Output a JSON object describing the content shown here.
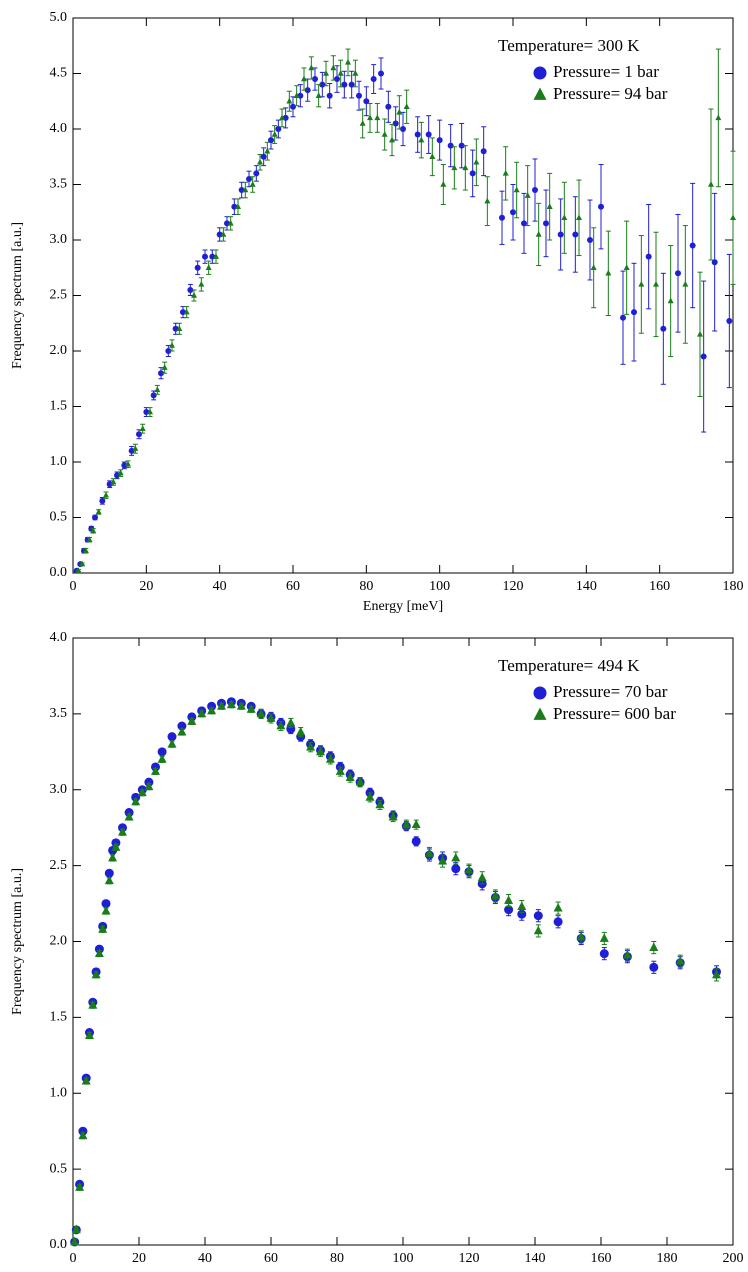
{
  "chart_data": [
    {
      "type": "scatter",
      "xlabel": "Energy [meV]",
      "ylabel": "Frequency spectrum [a.u.]",
      "legend_title": "Temperature= 300 K",
      "legend": "upper right",
      "xlim": [
        0,
        180
      ],
      "ylim": [
        0,
        5
      ],
      "xticks": [
        0,
        20,
        40,
        60,
        80,
        100,
        120,
        140,
        160,
        180
      ],
      "yticks": [
        {
          "value": 0,
          "label": "0.0"
        },
        0.5,
        {
          "value": 1,
          "label": "1.0"
        },
        1.5,
        {
          "value": 2,
          "label": "2.0"
        },
        2.5,
        {
          "value": 3,
          "label": "3.0"
        },
        3.5,
        {
          "value": 4,
          "label": "4.0"
        },
        4.5,
        {
          "value": 5,
          "label": "5.0"
        }
      ],
      "series": [
        {
          "name": "Pressure= 1 bar",
          "color": "#1f1fd6",
          "marker": "circle",
          "x": [
            1,
            2,
            3,
            4,
            5,
            6,
            8,
            10,
            12,
            14,
            16,
            18,
            20,
            22,
            24,
            26,
            28,
            30,
            32,
            34,
            36,
            38,
            40,
            42,
            44,
            46,
            48,
            50,
            52,
            54,
            56,
            58,
            60,
            62,
            64,
            66,
            68,
            70,
            72,
            74,
            76,
            78,
            80,
            82,
            84,
            86,
            88,
            90,
            94,
            97,
            100,
            103,
            106,
            109,
            112,
            117,
            120,
            123,
            126,
            129,
            133,
            137,
            141,
            144,
            150,
            153,
            157,
            161,
            165,
            169,
            172,
            175,
            179
          ],
          "values": [
            0.02,
            0.08,
            0.2,
            0.3,
            0.4,
            0.5,
            0.65,
            0.8,
            0.88,
            0.97,
            1.1,
            1.25,
            1.45,
            1.6,
            1.8,
            2.0,
            2.2,
            2.35,
            2.55,
            2.75,
            2.85,
            2.85,
            3.05,
            3.15,
            3.3,
            3.45,
            3.55,
            3.6,
            3.75,
            3.9,
            4.0,
            4.1,
            4.2,
            4.3,
            4.35,
            4.45,
            4.4,
            4.3,
            4.45,
            4.4,
            4.4,
            4.3,
            4.25,
            4.45,
            4.5,
            4.2,
            4.05,
            4.0,
            3.95,
            3.95,
            3.9,
            3.85,
            3.85,
            3.6,
            3.8,
            3.2,
            3.25,
            3.15,
            3.45,
            3.15,
            3.05,
            3.05,
            3.0,
            3.3,
            2.3,
            2.35,
            2.85,
            2.2,
            2.7,
            2.95,
            1.95,
            2.8,
            2.27
          ],
          "errors": [
            0.01,
            0.01,
            0.02,
            0.02,
            0.02,
            0.02,
            0.03,
            0.03,
            0.03,
            0.03,
            0.04,
            0.04,
            0.04,
            0.04,
            0.05,
            0.05,
            0.05,
            0.05,
            0.05,
            0.06,
            0.06,
            0.06,
            0.06,
            0.06,
            0.07,
            0.07,
            0.07,
            0.07,
            0.08,
            0.08,
            0.08,
            0.09,
            0.09,
            0.1,
            0.1,
            0.1,
            0.11,
            0.11,
            0.12,
            0.12,
            0.12,
            0.13,
            0.13,
            0.13,
            0.14,
            0.14,
            0.15,
            0.15,
            0.16,
            0.17,
            0.18,
            0.19,
            0.2,
            0.21,
            0.22,
            0.24,
            0.25,
            0.27,
            0.28,
            0.3,
            0.32,
            0.34,
            0.36,
            0.38,
            0.42,
            0.44,
            0.47,
            0.5,
            0.53,
            0.56,
            0.68,
            0.62,
            0.6
          ]
        },
        {
          "name": "Pressure= 94 bar",
          "color": "#1a7d1a",
          "marker": "triangle",
          "x": [
            1.5,
            2.5,
            3.5,
            4.5,
            5.5,
            7,
            9,
            11,
            13,
            15,
            17,
            19,
            21,
            23,
            25,
            27,
            29,
            31,
            33,
            35,
            37,
            39,
            41,
            43,
            45,
            47,
            49,
            51,
            53,
            55,
            57,
            59,
            61,
            63,
            65,
            67,
            69,
            71,
            73,
            75,
            77,
            79,
            81,
            83,
            85,
            87,
            89,
            91,
            95,
            98,
            101,
            104,
            107,
            110,
            113,
            118,
            121,
            124,
            127,
            130,
            134,
            138,
            142,
            146,
            151,
            155,
            159,
            163,
            167,
            171,
            174,
            176,
            180
          ],
          "values": [
            0.02,
            0.08,
            0.2,
            0.3,
            0.38,
            0.55,
            0.7,
            0.82,
            0.9,
            0.98,
            1.12,
            1.3,
            1.45,
            1.65,
            1.85,
            2.05,
            2.2,
            2.35,
            2.5,
            2.6,
            2.75,
            2.85,
            3.05,
            3.15,
            3.3,
            3.45,
            3.5,
            3.7,
            3.8,
            3.95,
            4.1,
            4.25,
            4.3,
            4.45,
            4.55,
            4.3,
            4.5,
            4.55,
            4.5,
            4.6,
            4.5,
            4.05,
            4.1,
            4.1,
            3.95,
            3.9,
            4.15,
            4.2,
            3.9,
            3.75,
            3.5,
            3.65,
            3.65,
            3.7,
            3.35,
            3.6,
            3.45,
            3.4,
            3.05,
            3.3,
            3.2,
            3.2,
            2.75,
            2.7,
            2.75,
            2.6,
            2.6,
            2.45,
            2.6,
            2.15,
            3.5,
            4.1,
            3.2
          ],
          "errors": [
            0.01,
            0.01,
            0.02,
            0.02,
            0.02,
            0.02,
            0.03,
            0.03,
            0.03,
            0.03,
            0.04,
            0.04,
            0.04,
            0.04,
            0.05,
            0.05,
            0.05,
            0.05,
            0.05,
            0.06,
            0.06,
            0.06,
            0.06,
            0.06,
            0.07,
            0.07,
            0.07,
            0.07,
            0.08,
            0.08,
            0.08,
            0.09,
            0.09,
            0.1,
            0.1,
            0.1,
            0.11,
            0.11,
            0.12,
            0.12,
            0.12,
            0.13,
            0.13,
            0.13,
            0.14,
            0.14,
            0.15,
            0.15,
            0.16,
            0.17,
            0.18,
            0.19,
            0.2,
            0.21,
            0.22,
            0.24,
            0.25,
            0.27,
            0.28,
            0.3,
            0.32,
            0.34,
            0.36,
            0.38,
            0.42,
            0.44,
            0.47,
            0.5,
            0.53,
            0.56,
            0.68,
            0.62,
            0.6
          ]
        }
      ]
    },
    {
      "type": "scatter",
      "xlabel": "Energy [meV]",
      "ylabel": "Frequency spectrum [a.u.]",
      "legend_title": "Temperature= 494 K",
      "legend": "upper right",
      "xlim": [
        0,
        200
      ],
      "ylim": [
        0,
        4
      ],
      "xticks": [
        0,
        20,
        40,
        60,
        80,
        100,
        120,
        140,
        160,
        180,
        200
      ],
      "yticks": [
        {
          "value": 0,
          "label": "0.0"
        },
        0.5,
        {
          "value": 1,
          "label": "1.0"
        },
        1.5,
        {
          "value": 2,
          "label": "2.0"
        },
        2.5,
        {
          "value": 3,
          "label": "3.0"
        },
        3.5,
        {
          "value": 4,
          "label": "4.0"
        }
      ],
      "series": [
        {
          "name": "Pressure= 70 bar",
          "color": "#1f1fd6",
          "marker": "circle",
          "x": [
            0.5,
            1,
            2,
            3,
            4,
            5,
            6,
            7,
            8,
            9,
            10,
            11,
            12,
            13,
            15,
            17,
            19,
            21,
            23,
            25,
            27,
            30,
            33,
            36,
            39,
            42,
            45,
            48,
            51,
            54,
            57,
            60,
            63,
            66,
            69,
            72,
            75,
            78,
            81,
            84,
            87,
            90,
            93,
            97,
            101,
            104,
            108,
            112,
            116,
            120,
            124,
            128,
            132,
            136,
            141,
            147,
            154,
            161,
            168,
            176,
            184,
            195
          ],
          "values": [
            0.02,
            0.1,
            0.4,
            0.75,
            1.1,
            1.4,
            1.6,
            1.8,
            1.95,
            2.1,
            2.25,
            2.45,
            2.6,
            2.65,
            2.75,
            2.85,
            2.95,
            3.0,
            3.05,
            3.15,
            3.25,
            3.35,
            3.42,
            3.48,
            3.52,
            3.55,
            3.57,
            3.58,
            3.57,
            3.55,
            3.5,
            3.48,
            3.44,
            3.4,
            3.35,
            3.3,
            3.26,
            3.22,
            3.15,
            3.1,
            3.05,
            2.98,
            2.92,
            2.83,
            2.76,
            2.66,
            2.57,
            2.55,
            2.48,
            2.46,
            2.38,
            2.29,
            2.21,
            2.18,
            2.17,
            2.13,
            2.02,
            1.92,
            1.9,
            1.83,
            1.86,
            1.8
          ],
          "errors": [
            0.02,
            0.02,
            0.02,
            0.02,
            0.02,
            0.02,
            0.02,
            0.02,
            0.02,
            0.02,
            0.02,
            0.02,
            0.02,
            0.02,
            0.02,
            0.02,
            0.02,
            0.02,
            0.02,
            0.02,
            0.02,
            0.02,
            0.02,
            0.02,
            0.02,
            0.02,
            0.02,
            0.02,
            0.02,
            0.02,
            0.03,
            0.03,
            0.03,
            0.03,
            0.03,
            0.03,
            0.03,
            0.03,
            0.03,
            0.03,
            0.03,
            0.03,
            0.03,
            0.03,
            0.03,
            0.03,
            0.04,
            0.04,
            0.04,
            0.04,
            0.04,
            0.04,
            0.04,
            0.04,
            0.04,
            0.04,
            0.04,
            0.04,
            0.04,
            0.04,
            0.04,
            0.04
          ]
        },
        {
          "name": "Pressure= 600 bar",
          "color": "#1a7d1a",
          "marker": "triangle",
          "x": [
            0.5,
            1,
            2,
            3,
            4,
            5,
            6,
            7,
            8,
            9,
            10,
            11,
            12,
            13,
            15,
            17,
            19,
            21,
            23,
            25,
            27,
            30,
            33,
            36,
            39,
            42,
            45,
            48,
            51,
            54,
            57,
            60,
            63,
            66,
            69,
            72,
            75,
            78,
            81,
            84,
            87,
            90,
            93,
            97,
            101,
            104,
            108,
            112,
            116,
            120,
            124,
            128,
            132,
            136,
            141,
            147,
            154,
            161,
            168,
            176,
            184,
            195
          ],
          "values": [
            0.02,
            0.1,
            0.38,
            0.72,
            1.08,
            1.38,
            1.58,
            1.78,
            1.92,
            2.08,
            2.2,
            2.4,
            2.55,
            2.62,
            2.72,
            2.82,
            2.92,
            2.98,
            3.02,
            3.12,
            3.2,
            3.3,
            3.38,
            3.45,
            3.5,
            3.52,
            3.55,
            3.56,
            3.55,
            3.53,
            3.5,
            3.47,
            3.42,
            3.44,
            3.38,
            3.28,
            3.25,
            3.2,
            3.12,
            3.08,
            3.05,
            2.95,
            2.9,
            2.82,
            2.77,
            2.77,
            2.58,
            2.53,
            2.55,
            2.47,
            2.42,
            2.3,
            2.27,
            2.23,
            2.07,
            2.22,
            2.03,
            2.02,
            1.91,
            1.96,
            1.87,
            1.78
          ],
          "errors": [
            0.02,
            0.02,
            0.02,
            0.02,
            0.02,
            0.02,
            0.02,
            0.02,
            0.02,
            0.02,
            0.02,
            0.02,
            0.02,
            0.02,
            0.02,
            0.02,
            0.02,
            0.02,
            0.02,
            0.02,
            0.02,
            0.02,
            0.02,
            0.02,
            0.02,
            0.02,
            0.02,
            0.02,
            0.02,
            0.02,
            0.03,
            0.03,
            0.03,
            0.03,
            0.03,
            0.03,
            0.03,
            0.03,
            0.03,
            0.03,
            0.03,
            0.03,
            0.03,
            0.03,
            0.03,
            0.03,
            0.04,
            0.04,
            0.04,
            0.04,
            0.04,
            0.04,
            0.04,
            0.04,
            0.04,
            0.04,
            0.04,
            0.04,
            0.04,
            0.04,
            0.04,
            0.04
          ]
        }
      ]
    }
  ]
}
